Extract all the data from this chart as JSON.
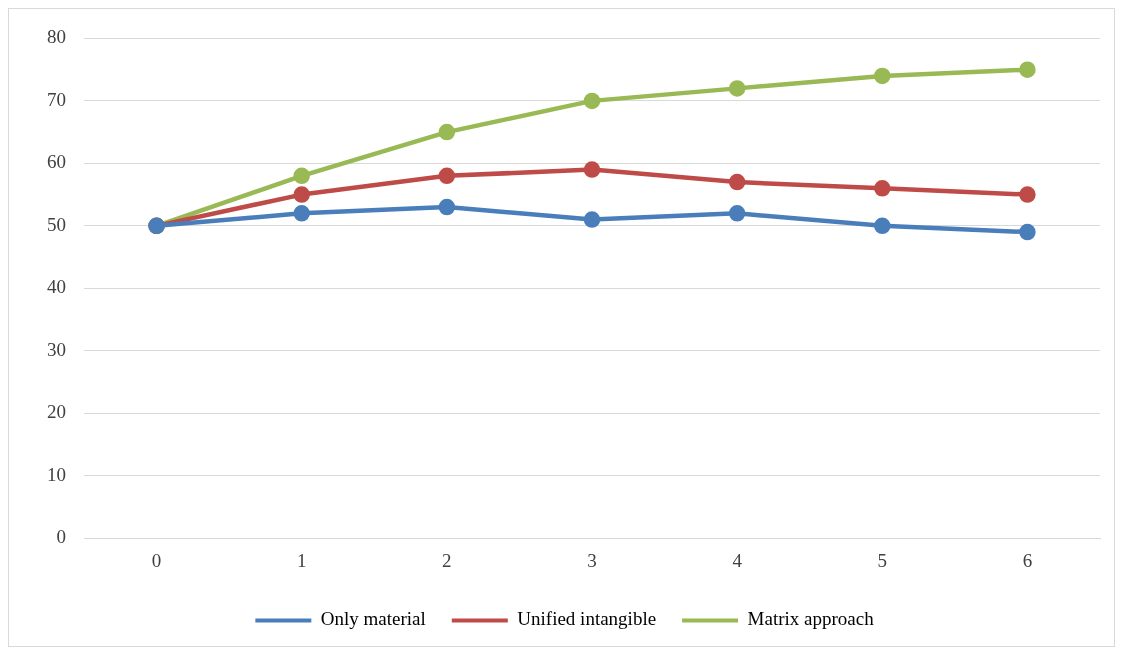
{
  "chart_data": {
    "type": "line",
    "categories": [
      "0",
      "1",
      "2",
      "3",
      "4",
      "5",
      "6"
    ],
    "series": [
      {
        "name": "Only material",
        "color": "#4a7ebb",
        "values": [
          50,
          52,
          53,
          51,
          52,
          50,
          49
        ]
      },
      {
        "name": "Unified intangible",
        "color": "#be4b48",
        "values": [
          50,
          55,
          58,
          59,
          57,
          56,
          55
        ]
      },
      {
        "name": "Matrix approach",
        "color": "#98b954",
        "values": [
          50,
          58,
          65,
          70,
          72,
          74,
          75
        ]
      }
    ],
    "ylim": [
      0,
      80
    ],
    "yticks": [
      0,
      10,
      20,
      30,
      40,
      50,
      60,
      70,
      80
    ],
    "grid": "y",
    "legend": "bottom",
    "marker": "circle",
    "line_style": "solid"
  }
}
